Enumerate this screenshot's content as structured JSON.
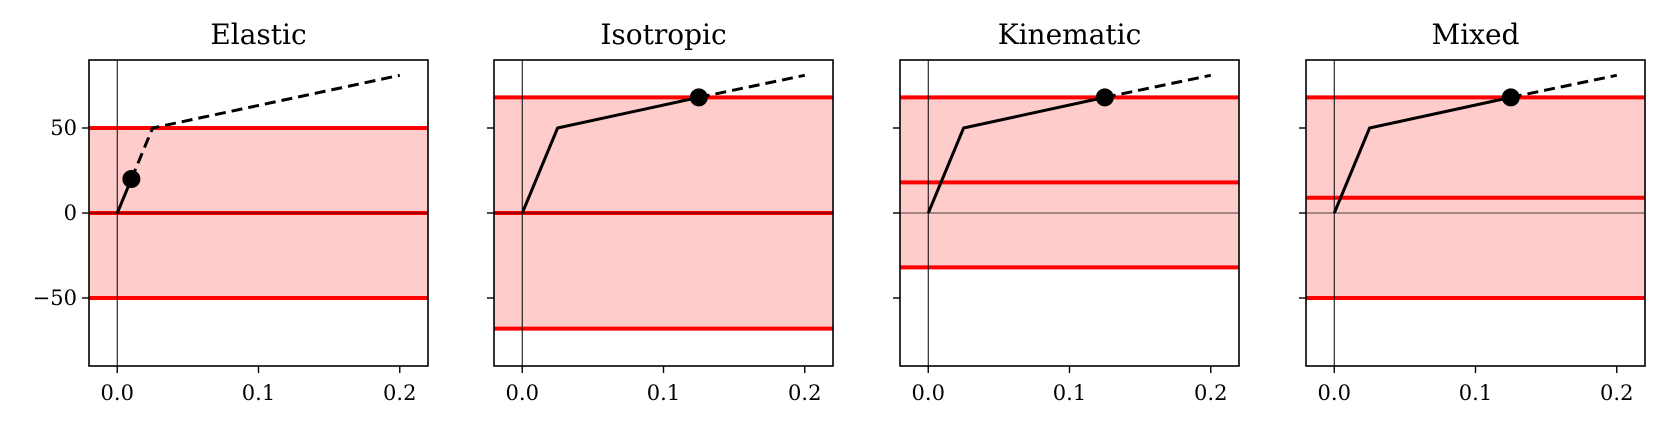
{
  "chart_data": [
    {
      "type": "line",
      "title": "Elastic",
      "xlim": [
        -0.02,
        0.22
      ],
      "ylim": [
        -90,
        90
      ],
      "xticks": [
        0.0,
        0.1,
        0.2
      ],
      "xtick_labels": [
        "0.0",
        "0.1",
        "0.2"
      ],
      "yticks": [
        -50,
        0,
        50
      ],
      "ytick_labels": [
        "−50",
        "0",
        "50"
      ],
      "show_ytick_labels": true,
      "path": {
        "solid": [
          [
            0,
            0
          ],
          [
            0.01,
            20
          ]
        ],
        "dashed": [
          [
            0.01,
            20
          ],
          [
            0.025,
            50
          ],
          [
            0.2,
            81
          ]
        ]
      },
      "marker": [
        0.01,
        20
      ],
      "yield_band": [
        -50,
        50
      ],
      "backstress": 0,
      "reference_lines": {
        "x": 0,
        "y": 0
      }
    },
    {
      "type": "line",
      "title": "Isotropic",
      "xlim": [
        -0.02,
        0.22
      ],
      "ylim": [
        -90,
        90
      ],
      "xticks": [
        0.0,
        0.1,
        0.2
      ],
      "xtick_labels": [
        "0.0",
        "0.1",
        "0.2"
      ],
      "yticks": [
        -50,
        0,
        50
      ],
      "ytick_labels": [
        "−50",
        "0",
        "50"
      ],
      "show_ytick_labels": false,
      "path": {
        "solid": [
          [
            0,
            0
          ],
          [
            0.025,
            50
          ],
          [
            0.125,
            68
          ]
        ],
        "dashed": [
          [
            0.125,
            68
          ],
          [
            0.2,
            81
          ]
        ]
      },
      "marker": [
        0.125,
        68
      ],
      "yield_band": [
        -68,
        68
      ],
      "backstress": 0,
      "reference_lines": {
        "x": 0,
        "y": 0
      }
    },
    {
      "type": "line",
      "title": "Kinematic",
      "xlim": [
        -0.02,
        0.22
      ],
      "ylim": [
        -90,
        90
      ],
      "xticks": [
        0.0,
        0.1,
        0.2
      ],
      "xtick_labels": [
        "0.0",
        "0.1",
        "0.2"
      ],
      "yticks": [
        -50,
        0,
        50
      ],
      "ytick_labels": [
        "−50",
        "0",
        "50"
      ],
      "show_ytick_labels": false,
      "path": {
        "solid": [
          [
            0,
            0
          ],
          [
            0.025,
            50
          ],
          [
            0.125,
            68
          ]
        ],
        "dashed": [
          [
            0.125,
            68
          ],
          [
            0.2,
            81
          ]
        ]
      },
      "marker": [
        0.125,
        68
      ],
      "yield_band": [
        -32,
        68
      ],
      "backstress": 18,
      "reference_lines": {
        "x": 0,
        "y": 0
      }
    },
    {
      "type": "line",
      "title": "Mixed",
      "xlim": [
        -0.02,
        0.22
      ],
      "ylim": [
        -90,
        90
      ],
      "xticks": [
        0.0,
        0.1,
        0.2
      ],
      "xtick_labels": [
        "0.0",
        "0.1",
        "0.2"
      ],
      "yticks": [
        -50,
        0,
        50
      ],
      "ytick_labels": [
        "−50",
        "0",
        "50"
      ],
      "show_ytick_labels": false,
      "path": {
        "solid": [
          [
            0,
            0
          ],
          [
            0.025,
            50
          ],
          [
            0.125,
            68
          ]
        ],
        "dashed": [
          [
            0.125,
            68
          ],
          [
            0.2,
            81
          ]
        ]
      },
      "marker": [
        0.125,
        68
      ],
      "yield_band": [
        -50,
        68
      ],
      "backstress": 9,
      "reference_lines": {
        "x": 0,
        "y": 0
      }
    }
  ],
  "colors": {
    "band_fill": "#ffcccc",
    "yield_line": "#ff0000",
    "path": "#000000",
    "axis": "#000000"
  }
}
